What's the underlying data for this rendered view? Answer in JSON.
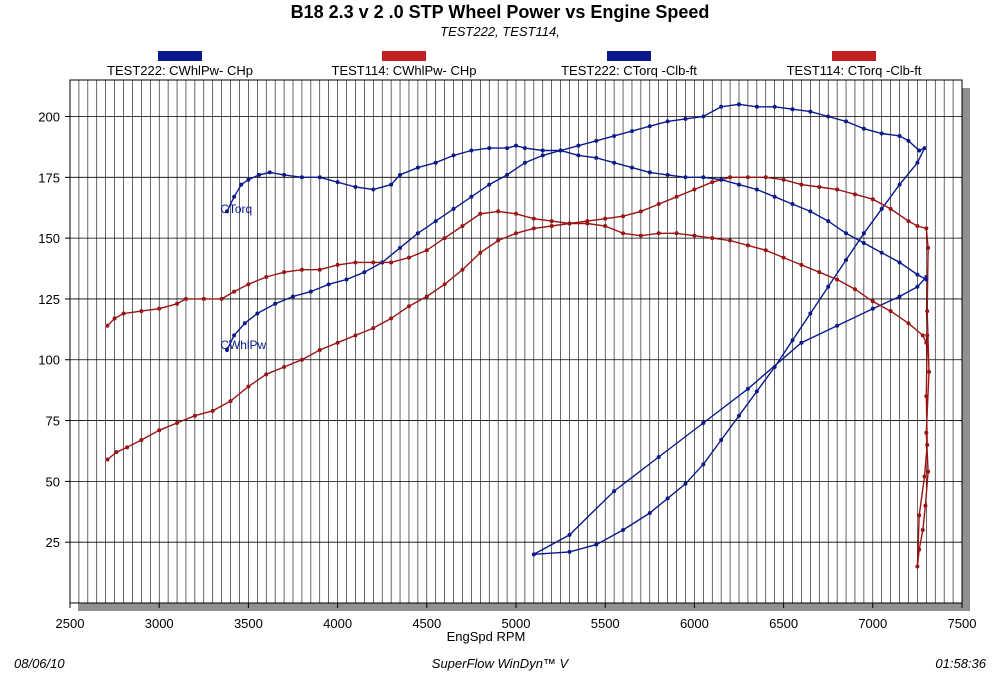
{
  "header": {
    "title": "B18 2.3 v 2 .0  STP Wheel Power vs Engine Speed",
    "subtitle": "TEST222, TEST114,"
  },
  "footer": {
    "date": "08/06/10",
    "software": "SuperFlow WinDyn™ V",
    "time": "01:58:36"
  },
  "colors": {
    "blue": "#0a1a8c",
    "red": "#9a1414",
    "grid": "#000000",
    "shadow": "#909090"
  },
  "chart_data": {
    "type": "line",
    "title": "B18 2.3 v 2 .0  STP Wheel Power vs Engine Speed",
    "xlabel": "EngSpd  RPM",
    "ylabel": "",
    "xlim": [
      2500,
      7500
    ],
    "ylim": [
      0,
      215
    ],
    "xticks": [
      2500,
      3000,
      3500,
      4000,
      4500,
      5000,
      5500,
      6000,
      6500,
      7000,
      7500
    ],
    "yticks": [
      25,
      50,
      75,
      100,
      125,
      150,
      175,
      200
    ],
    "grid": true,
    "legend_position": "top",
    "annotations": [
      {
        "text": "CTorq",
        "x": 3370,
        "y": 162
      },
      {
        "text": "CWhlPw",
        "x": 3370,
        "y": 106
      }
    ],
    "series": [
      {
        "name": "TEST222: CWhlPw- CHp",
        "color": "blue",
        "points": [
          [
            3380,
            104
          ],
          [
            3420,
            110
          ],
          [
            3480,
            115
          ],
          [
            3550,
            119
          ],
          [
            3650,
            123
          ],
          [
            3750,
            126
          ],
          [
            3850,
            128
          ],
          [
            3950,
            131
          ],
          [
            4050,
            133
          ],
          [
            4150,
            136
          ],
          [
            4250,
            140
          ],
          [
            4350,
            146
          ],
          [
            4450,
            152
          ],
          [
            4550,
            157
          ],
          [
            4650,
            162
          ],
          [
            4750,
            167
          ],
          [
            4850,
            172
          ],
          [
            4950,
            176
          ],
          [
            5050,
            181
          ],
          [
            5150,
            184
          ],
          [
            5250,
            186
          ],
          [
            5350,
            188
          ],
          [
            5450,
            190
          ],
          [
            5550,
            192
          ],
          [
            5650,
            194
          ],
          [
            5750,
            196
          ],
          [
            5850,
            198
          ],
          [
            5950,
            199
          ],
          [
            6050,
            200
          ],
          [
            6150,
            204
          ],
          [
            6250,
            205
          ],
          [
            6350,
            204
          ],
          [
            6450,
            204
          ],
          [
            6550,
            203
          ],
          [
            6650,
            202
          ],
          [
            6750,
            200
          ],
          [
            6850,
            198
          ],
          [
            6950,
            195
          ],
          [
            7050,
            193
          ],
          [
            7150,
            192
          ],
          [
            7200,
            190
          ],
          [
            7260,
            186
          ],
          [
            7290,
            187
          ],
          [
            7250,
            181
          ],
          [
            7150,
            172
          ],
          [
            7050,
            162
          ],
          [
            6950,
            152
          ],
          [
            6850,
            141
          ],
          [
            6750,
            130
          ],
          [
            6650,
            119
          ],
          [
            6550,
            108
          ],
          [
            6450,
            97
          ],
          [
            6350,
            87
          ],
          [
            6250,
            77
          ],
          [
            6150,
            67
          ],
          [
            6050,
            57
          ],
          [
            5950,
            49
          ],
          [
            5850,
            43
          ],
          [
            5750,
            37
          ],
          [
            5600,
            30
          ],
          [
            5450,
            24
          ],
          [
            5300,
            21
          ],
          [
            5100,
            20
          ],
          [
            5300,
            28
          ],
          [
            5550,
            46
          ],
          [
            5800,
            60
          ],
          [
            6050,
            74
          ],
          [
            6300,
            88
          ],
          [
            6600,
            107
          ],
          [
            6800,
            114
          ],
          [
            7000,
            121
          ],
          [
            7150,
            126
          ],
          [
            7250,
            130
          ],
          [
            7300,
            134
          ]
        ]
      },
      {
        "name": "TEST114: CWhlPw- CHp",
        "color": "red",
        "points": [
          [
            2710,
            59
          ],
          [
            2760,
            62
          ],
          [
            2820,
            64
          ],
          [
            2900,
            67
          ],
          [
            3000,
            71
          ],
          [
            3100,
            74
          ],
          [
            3200,
            77
          ],
          [
            3300,
            79
          ],
          [
            3400,
            83
          ],
          [
            3500,
            89
          ],
          [
            3600,
            94
          ],
          [
            3700,
            97
          ],
          [
            3800,
            100
          ],
          [
            3900,
            104
          ],
          [
            4000,
            107
          ],
          [
            4100,
            110
          ],
          [
            4200,
            113
          ],
          [
            4300,
            117
          ],
          [
            4400,
            122
          ],
          [
            4500,
            126
          ],
          [
            4600,
            131
          ],
          [
            4700,
            137
          ],
          [
            4800,
            144
          ],
          [
            4900,
            149
          ],
          [
            5000,
            152
          ],
          [
            5100,
            154
          ],
          [
            5200,
            155
          ],
          [
            5300,
            156
          ],
          [
            5400,
            157
          ],
          [
            5500,
            158
          ],
          [
            5600,
            159
          ],
          [
            5700,
            161
          ],
          [
            5800,
            164
          ],
          [
            5900,
            167
          ],
          [
            6000,
            170
          ],
          [
            6100,
            173
          ],
          [
            6200,
            175
          ],
          [
            6300,
            175
          ],
          [
            6400,
            175
          ],
          [
            6500,
            174
          ],
          [
            6600,
            172
          ],
          [
            6700,
            171
          ],
          [
            6800,
            170
          ],
          [
            6900,
            168
          ],
          [
            7000,
            166
          ],
          [
            7100,
            162
          ],
          [
            7200,
            157
          ],
          [
            7250,
            155
          ],
          [
            7300,
            154
          ],
          [
            7310,
            146
          ],
          [
            7305,
            120
          ],
          [
            7315,
            95
          ],
          [
            7300,
            70
          ],
          [
            7310,
            54
          ],
          [
            7295,
            40
          ],
          [
            7280,
            30
          ],
          [
            7260,
            22
          ],
          [
            7250,
            15
          ],
          [
            7260,
            36
          ],
          [
            7290,
            52
          ],
          [
            7305,
            65
          ],
          [
            7300,
            85
          ],
          [
            7305,
            110
          ]
        ]
      },
      {
        "name": "TEST222: CTorq -Clb-ft",
        "color": "blue",
        "points": [
          [
            3380,
            161
          ],
          [
            3420,
            167
          ],
          [
            3460,
            172
          ],
          [
            3500,
            174
          ],
          [
            3560,
            176
          ],
          [
            3620,
            177
          ],
          [
            3700,
            176
          ],
          [
            3800,
            175
          ],
          [
            3900,
            175
          ],
          [
            4000,
            173
          ],
          [
            4100,
            171
          ],
          [
            4200,
            170
          ],
          [
            4300,
            172
          ],
          [
            4350,
            176
          ],
          [
            4450,
            179
          ],
          [
            4550,
            181
          ],
          [
            4650,
            184
          ],
          [
            4750,
            186
          ],
          [
            4850,
            187
          ],
          [
            4950,
            187
          ],
          [
            5000,
            188
          ],
          [
            5050,
            187
          ],
          [
            5150,
            186
          ],
          [
            5250,
            186
          ],
          [
            5350,
            184
          ],
          [
            5450,
            183
          ],
          [
            5550,
            181
          ],
          [
            5650,
            179
          ],
          [
            5750,
            177
          ],
          [
            5850,
            176
          ],
          [
            5950,
            175
          ],
          [
            6050,
            175
          ],
          [
            6150,
            174
          ],
          [
            6250,
            172
          ],
          [
            6350,
            170
          ],
          [
            6450,
            167
          ],
          [
            6550,
            164
          ],
          [
            6650,
            161
          ],
          [
            6750,
            157
          ],
          [
            6850,
            152
          ],
          [
            6950,
            148
          ],
          [
            7050,
            144
          ],
          [
            7150,
            140
          ],
          [
            7250,
            135
          ],
          [
            7300,
            133
          ]
        ]
      },
      {
        "name": "TEST114: CTorq -Clb-ft",
        "color": "red",
        "points": [
          [
            2710,
            114
          ],
          [
            2750,
            117
          ],
          [
            2800,
            119
          ],
          [
            2900,
            120
          ],
          [
            3000,
            121
          ],
          [
            3100,
            123
          ],
          [
            3150,
            125
          ],
          [
            3250,
            125
          ],
          [
            3350,
            125
          ],
          [
            3420,
            128
          ],
          [
            3500,
            131
          ],
          [
            3600,
            134
          ],
          [
            3700,
            136
          ],
          [
            3800,
            137
          ],
          [
            3900,
            137
          ],
          [
            4000,
            139
          ],
          [
            4100,
            140
          ],
          [
            4200,
            140
          ],
          [
            4300,
            140
          ],
          [
            4400,
            142
          ],
          [
            4500,
            145
          ],
          [
            4600,
            150
          ],
          [
            4700,
            155
          ],
          [
            4800,
            160
          ],
          [
            4900,
            161
          ],
          [
            5000,
            160
          ],
          [
            5100,
            158
          ],
          [
            5200,
            157
          ],
          [
            5300,
            156
          ],
          [
            5400,
            156
          ],
          [
            5500,
            155
          ],
          [
            5600,
            152
          ],
          [
            5700,
            151
          ],
          [
            5800,
            152
          ],
          [
            5900,
            152
          ],
          [
            6000,
            151
          ],
          [
            6100,
            150
          ],
          [
            6200,
            149
          ],
          [
            6300,
            147
          ],
          [
            6400,
            145
          ],
          [
            6500,
            142
          ],
          [
            6600,
            139
          ],
          [
            6700,
            136
          ],
          [
            6800,
            133
          ],
          [
            6900,
            129
          ],
          [
            7000,
            124
          ],
          [
            7100,
            120
          ],
          [
            7200,
            115
          ],
          [
            7280,
            110
          ],
          [
            7300,
            107
          ]
        ]
      }
    ]
  }
}
